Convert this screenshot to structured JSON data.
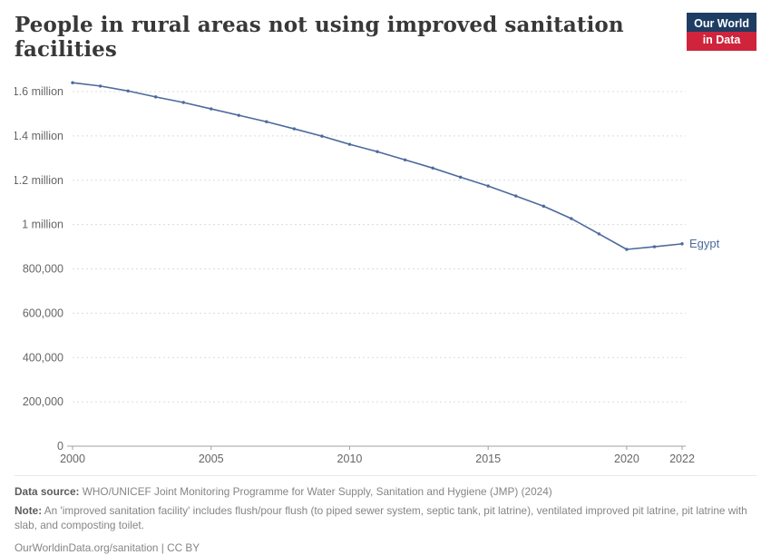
{
  "header": {
    "title": "People in rural areas not using improved sanitation facilities",
    "logo": {
      "line1": "Our World",
      "line2": "in Data",
      "bg_color": "#1d3d63",
      "accent_color": "#cf243c"
    }
  },
  "chart_data": {
    "type": "line",
    "title": "People in rural areas not using improved sanitation facilities",
    "xlim": [
      2000,
      2022
    ],
    "ylim": [
      0,
      1600000
    ],
    "grid": "dashed horizontal gridlines",
    "legend_position": "end-of-line label",
    "x_ticks": [
      2000,
      2005,
      2010,
      2015,
      2020,
      2022
    ],
    "y_ticks": [
      {
        "value": 0,
        "label": "0"
      },
      {
        "value": 200000,
        "label": "200,000"
      },
      {
        "value": 400000,
        "label": "400,000"
      },
      {
        "value": 600000,
        "label": "600,000"
      },
      {
        "value": 800000,
        "label": "800,000"
      },
      {
        "value": 1000000,
        "label": "1 million"
      },
      {
        "value": 1200000,
        "label": "1.2 million"
      },
      {
        "value": 1400000,
        "label": "1.4 million"
      },
      {
        "value": 1600000,
        "label": "1.6 million"
      }
    ],
    "series": [
      {
        "name": "Egypt",
        "color": "#4c6a9c",
        "x": [
          2000,
          2001,
          2002,
          2003,
          2004,
          2005,
          2006,
          2007,
          2008,
          2009,
          2010,
          2011,
          2012,
          2013,
          2014,
          2015,
          2016,
          2017,
          2018,
          2019,
          2020,
          2021,
          2022
        ],
        "values": [
          1640000,
          1625000,
          1603000,
          1576000,
          1551000,
          1522000,
          1493000,
          1464000,
          1432000,
          1399000,
          1362000,
          1329000,
          1292000,
          1255000,
          1214000,
          1174000,
          1129000,
          1083000,
          1027000,
          958000,
          888000,
          900000,
          913000
        ]
      }
    ]
  },
  "footer": {
    "source_label": "Data source:",
    "source_text": " WHO/UNICEF Joint Monitoring Programme for Water Supply, Sanitation and Hygiene (JMP) (2024)",
    "note_label": "Note:",
    "note_text": " An 'improved sanitation facility' includes flush/pour flush (to piped sewer system, septic tank, pit latrine), ventilated improved pit latrine, pit latrine with slab, and composting toilet.",
    "link": "OurWorldinData.org/sanitation",
    "license": " | CC BY"
  }
}
